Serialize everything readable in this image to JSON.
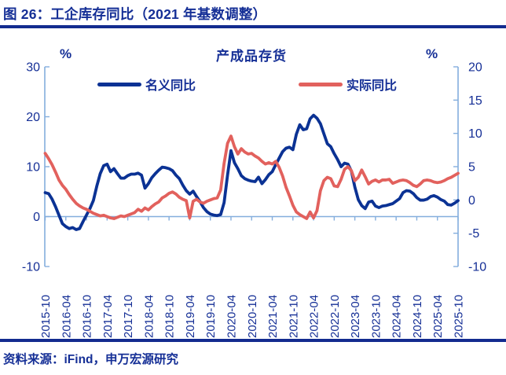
{
  "page": {
    "title": "图 26：工企库存同比（2021 年基数调整）",
    "source": "资料来源：iFind，申万宏源研究"
  },
  "colors": {
    "navy_text": "#152F96",
    "rule_navy": "#132B8F",
    "nominal_line": "#0B3294",
    "real_line": "#E2615D",
    "axis_line": "#84AEDD",
    "background": "#FFFFFF"
  },
  "chart_data": {
    "type": "line",
    "title": "产成品存货",
    "left_axis": {
      "unit": "%",
      "min": -10,
      "max": 30,
      "ticks": [
        30,
        20,
        10,
        0,
        -10
      ]
    },
    "right_axis": {
      "unit": "%",
      "min": -10,
      "max": 20,
      "ticks": [
        20,
        15,
        10,
        5,
        0,
        -5,
        -10
      ]
    },
    "grid": "zero-line-only",
    "legend_position": "top-inside",
    "x_monthly_start": "2015-10",
    "x_monthly_end": "2025-10",
    "x_tick_labels": [
      "2015-10",
      "2016-04",
      "2016-10",
      "2017-04",
      "2017-10",
      "2018-04",
      "2018-10",
      "2019-04",
      "2019-10",
      "2020-04",
      "2020-10",
      "2021-04",
      "2021-10",
      "2022-04",
      "2022-10",
      "2023-04",
      "2023-10",
      "2024-04",
      "2024-10",
      "2025-04",
      "2025-10"
    ],
    "series": [
      {
        "key": "nominal-yoy",
        "name": "名义同比",
        "axis": "left",
        "color": "#0B3294",
        "values": [
          4.8,
          4.6,
          3.5,
          2.0,
          0.3,
          -1.4,
          -2.0,
          -2.4,
          -2.2,
          -2.6,
          -2.4,
          -1.0,
          0.3,
          1.6,
          3.2,
          6.1,
          8.6,
          10.2,
          10.5,
          9.0,
          9.6,
          8.6,
          7.7,
          7.7,
          8.2,
          8.5,
          8.5,
          8.7,
          8.3,
          5.7,
          6.6,
          7.8,
          8.6,
          9.3,
          9.9,
          9.8,
          9.6,
          9.2,
          8.3,
          7.6,
          6.3,
          5.2,
          4.5,
          5.1,
          4.0,
          3.0,
          1.8,
          1.0,
          0.5,
          0.3,
          0.2,
          0.4,
          2.8,
          8.3,
          13.2,
          10.8,
          9.6,
          8.2,
          7.6,
          7.3,
          7.1,
          7.0,
          7.9,
          6.6,
          7.4,
          8.4,
          9.0,
          10.4,
          11.7,
          13.0,
          13.7,
          13.9,
          13.4,
          16.5,
          18.4,
          17.4,
          17.6,
          19.6,
          20.3,
          19.7,
          18.6,
          16.6,
          14.6,
          14.0,
          12.6,
          11.4,
          10.0,
          10.7,
          10.5,
          9.1,
          5.9,
          3.4,
          2.2,
          1.6,
          2.9,
          3.1,
          2.1,
          1.8,
          2.1,
          2.2,
          2.4,
          2.6,
          3.1,
          3.6,
          4.8,
          5.2,
          5.1,
          4.6,
          3.8,
          3.3,
          3.3,
          3.5,
          4.0,
          4.2,
          3.9,
          3.4,
          3.1,
          2.4,
          2.3,
          2.7,
          3.2
        ]
      },
      {
        "key": "real-yoy",
        "name": "实际同比",
        "axis": "right",
        "color": "#E2615D",
        "values": [
          7.0,
          6.2,
          5.3,
          4.2,
          3.0,
          2.2,
          1.6,
          0.8,
          0.1,
          -0.5,
          -0.9,
          -1.2,
          -1.4,
          -1.7,
          -2.0,
          -2.2,
          -2.4,
          -2.3,
          -2.5,
          -2.7,
          -2.8,
          -2.6,
          -2.4,
          -2.5,
          -2.3,
          -2.1,
          -1.9,
          -1.4,
          -1.7,
          -1.2,
          -1.5,
          -1.0,
          -0.6,
          -0.3,
          0.3,
          0.6,
          1.0,
          1.2,
          0.9,
          0.4,
          0.1,
          -0.1,
          -2.7,
          -0.2,
          0.1,
          -0.3,
          -0.5,
          -0.2,
          0.0,
          0.2,
          0.3,
          1.5,
          5.5,
          8.5,
          9.6,
          8.0,
          6.9,
          7.7,
          7.2,
          6.9,
          7.0,
          6.6,
          6.3,
          5.8,
          5.4,
          5.6,
          5.4,
          5.8,
          4.9,
          3.6,
          1.9,
          0.6,
          -0.8,
          -1.8,
          -2.2,
          -2.5,
          -2.8,
          -1.8,
          -2.7,
          -1.6,
          1.4,
          2.9,
          3.4,
          3.2,
          2.1,
          2.0,
          3.1,
          4.6,
          5.0,
          4.4,
          2.9,
          3.4,
          4.5,
          3.5,
          2.4,
          2.8,
          3.0,
          2.7,
          3.0,
          3.0,
          3.1,
          2.5,
          2.7,
          2.9,
          3.0,
          2.9,
          2.6,
          2.2,
          2.0,
          2.4,
          2.9,
          3.0,
          2.9,
          2.7,
          2.6,
          2.7,
          2.9,
          3.2,
          3.4,
          3.7,
          4.0
        ]
      }
    ]
  }
}
